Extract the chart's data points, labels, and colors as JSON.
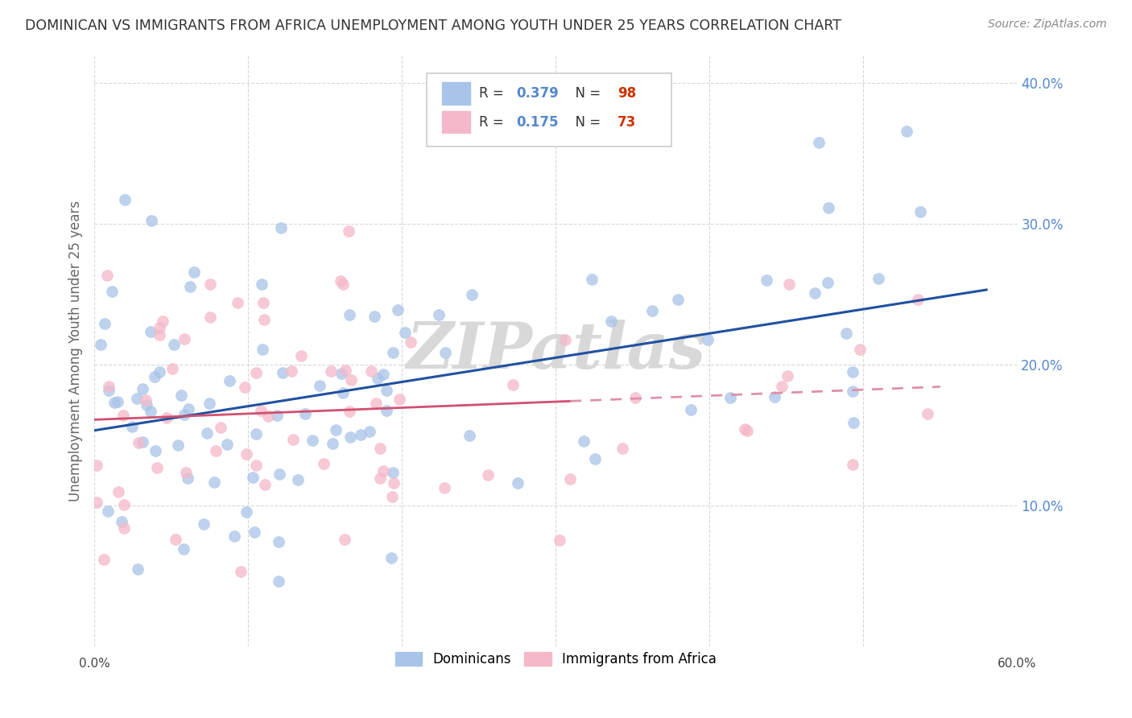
{
  "title": "DOMINICAN VS IMMIGRANTS FROM AFRICA UNEMPLOYMENT AMONG YOUTH UNDER 25 YEARS CORRELATION CHART",
  "source": "Source: ZipAtlas.com",
  "ylabel": "Unemployment Among Youth under 25 years",
  "xlim": [
    0.0,
    0.6
  ],
  "ylim": [
    0.0,
    0.42
  ],
  "blue_color": "#a8c4e8",
  "pink_color": "#f5b8c8",
  "blue_line_color": "#2050a0",
  "pink_line_color": "#d05070",
  "pink_line_dashed_color": "#e090a8",
  "ytick_color": "#5588cc",
  "watermark": "ZIPatlas",
  "watermark_color": "#d8d8d8",
  "bg_color": "#ffffff",
  "grid_color": "#cccccc",
  "title_color": "#333333",
  "source_color": "#888888",
  "ylabel_color": "#666666",
  "legend_edge_color": "#cccccc",
  "dom_seed": 42,
  "afr_seed": 99
}
